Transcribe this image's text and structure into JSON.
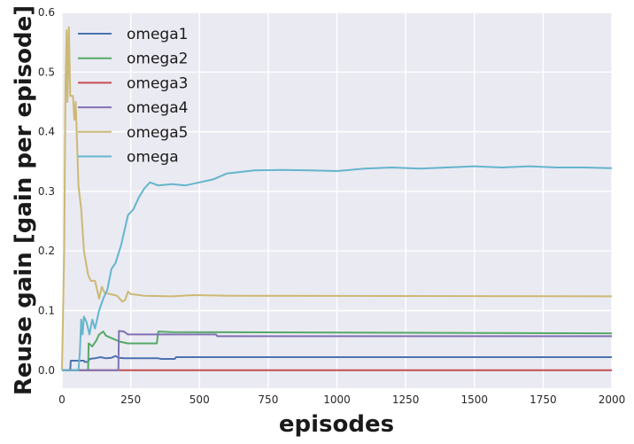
{
  "chart_data": {
    "type": "line",
    "xlabel": "episodes",
    "ylabel": "Reuse gain [gain per episode]",
    "xlim": [
      0,
      2000
    ],
    "ylim": [
      -0.03,
      0.6
    ],
    "xticks": [
      0,
      250,
      500,
      750,
      1000,
      1250,
      1500,
      1750,
      2000
    ],
    "yticks": [
      0.0,
      0.1,
      0.2,
      0.3,
      0.4,
      0.5,
      0.6
    ],
    "xtick_labels": [
      "0",
      "250",
      "500",
      "750",
      "1000",
      "1250",
      "1500",
      "1750",
      "2000"
    ],
    "ytick_labels": [
      "0.0",
      "0.1",
      "0.2",
      "0.3",
      "0.4",
      "0.5",
      "0.6"
    ],
    "grid": true,
    "legend_position": "top-left",
    "series": [
      {
        "name": "omega1",
        "color": "#4C72B0",
        "points": [
          [
            0,
            0
          ],
          [
            30,
            0
          ],
          [
            32,
            0.016
          ],
          [
            80,
            0.016
          ],
          [
            82,
            0.014
          ],
          [
            95,
            0.014
          ],
          [
            100,
            0.019
          ],
          [
            120,
            0.02
          ],
          [
            140,
            0.022
          ],
          [
            160,
            0.02
          ],
          [
            180,
            0.021
          ],
          [
            195,
            0.024
          ],
          [
            205,
            0.021
          ],
          [
            230,
            0.02
          ],
          [
            350,
            0.02
          ],
          [
            360,
            0.019
          ],
          [
            410,
            0.019
          ],
          [
            415,
            0.022
          ],
          [
            2000,
            0.022
          ]
        ]
      },
      {
        "name": "omega2",
        "color": "#55A868",
        "points": [
          [
            0,
            0
          ],
          [
            95,
            0
          ],
          [
            97,
            0.045
          ],
          [
            110,
            0.04
          ],
          [
            125,
            0.05
          ],
          [
            135,
            0.06
          ],
          [
            150,
            0.065
          ],
          [
            160,
            0.058
          ],
          [
            175,
            0.055
          ],
          [
            190,
            0.052
          ],
          [
            210,
            0.048
          ],
          [
            240,
            0.045
          ],
          [
            300,
            0.045
          ],
          [
            345,
            0.045
          ],
          [
            350,
            0.065
          ],
          [
            400,
            0.064
          ],
          [
            2000,
            0.062
          ]
        ]
      },
      {
        "name": "omega3",
        "color": "#C44E52",
        "points": [
          [
            0,
            0
          ],
          [
            2000,
            0
          ]
        ]
      },
      {
        "name": "omega4",
        "color": "#8172B2",
        "points": [
          [
            0,
            0
          ],
          [
            205,
            0
          ],
          [
            207,
            0.066
          ],
          [
            225,
            0.065
          ],
          [
            240,
            0.06
          ],
          [
            300,
            0.06
          ],
          [
            560,
            0.06
          ],
          [
            565,
            0.057
          ],
          [
            2000,
            0.057
          ]
        ]
      },
      {
        "name": "omega5",
        "color": "#CCB974",
        "points": [
          [
            0,
            0
          ],
          [
            8,
            0.2
          ],
          [
            13,
            0.48
          ],
          [
            17,
            0.57
          ],
          [
            20,
            0.45
          ],
          [
            25,
            0.575
          ],
          [
            30,
            0.46
          ],
          [
            40,
            0.46
          ],
          [
            45,
            0.42
          ],
          [
            50,
            0.45
          ],
          [
            60,
            0.31
          ],
          [
            70,
            0.27
          ],
          [
            80,
            0.2
          ],
          [
            95,
            0.16
          ],
          [
            105,
            0.15
          ],
          [
            120,
            0.15
          ],
          [
            130,
            0.13
          ],
          [
            135,
            0.12
          ],
          [
            145,
            0.14
          ],
          [
            155,
            0.13
          ],
          [
            200,
            0.125
          ],
          [
            220,
            0.115
          ],
          [
            230,
            0.118
          ],
          [
            240,
            0.132
          ],
          [
            250,
            0.128
          ],
          [
            300,
            0.125
          ],
          [
            400,
            0.124
          ],
          [
            480,
            0.126
          ],
          [
            600,
            0.125
          ],
          [
            2000,
            0.124
          ]
        ]
      },
      {
        "name": "omega",
        "color": "#64B5CD",
        "points": [
          [
            0,
            0
          ],
          [
            60,
            0
          ],
          [
            65,
            0.03
          ],
          [
            70,
            0.085
          ],
          [
            75,
            0.06
          ],
          [
            80,
            0.09
          ],
          [
            90,
            0.08
          ],
          [
            100,
            0.06
          ],
          [
            110,
            0.085
          ],
          [
            120,
            0.07
          ],
          [
            135,
            0.1
          ],
          [
            150,
            0.12
          ],
          [
            165,
            0.135
          ],
          [
            180,
            0.17
          ],
          [
            195,
            0.18
          ],
          [
            215,
            0.21
          ],
          [
            240,
            0.26
          ],
          [
            260,
            0.27
          ],
          [
            280,
            0.29
          ],
          [
            300,
            0.305
          ],
          [
            320,
            0.315
          ],
          [
            350,
            0.31
          ],
          [
            400,
            0.312
          ],
          [
            450,
            0.31
          ],
          [
            500,
            0.315
          ],
          [
            550,
            0.32
          ],
          [
            600,
            0.33
          ],
          [
            700,
            0.335
          ],
          [
            800,
            0.336
          ],
          [
            900,
            0.335
          ],
          [
            1000,
            0.334
          ],
          [
            1100,
            0.338
          ],
          [
            1200,
            0.34
          ],
          [
            1300,
            0.338
          ],
          [
            1400,
            0.34
          ],
          [
            1500,
            0.342
          ],
          [
            1600,
            0.34
          ],
          [
            1700,
            0.342
          ],
          [
            1800,
            0.34
          ],
          [
            1900,
            0.34
          ],
          [
            2000,
            0.339
          ]
        ]
      }
    ]
  }
}
